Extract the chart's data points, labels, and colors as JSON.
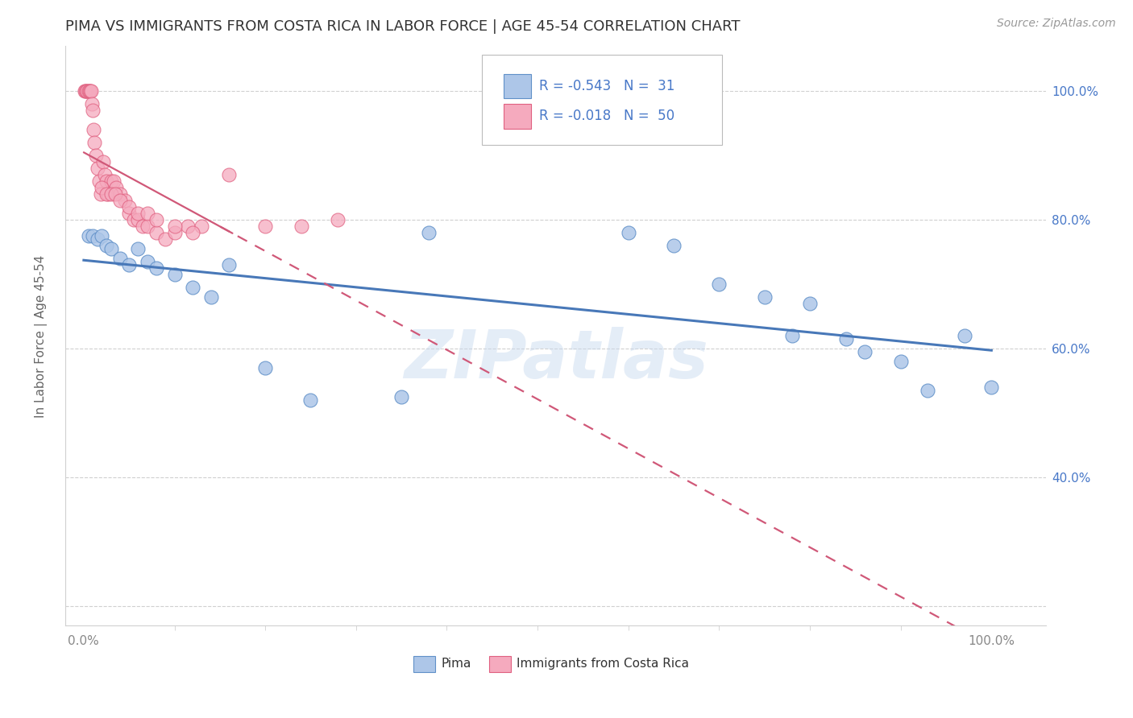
{
  "title": "PIMA VS IMMIGRANTS FROM COSTA RICA IN LABOR FORCE | AGE 45-54 CORRELATION CHART",
  "source": "Source: ZipAtlas.com",
  "ylabel": "In Labor Force | Age 45-54",
  "xlim": [
    -0.02,
    1.06
  ],
  "ylim": [
    0.17,
    1.07
  ],
  "blue_R": -0.543,
  "blue_N": 31,
  "pink_R": -0.018,
  "pink_N": 50,
  "blue_color": "#adc6e8",
  "pink_color": "#f5aabe",
  "blue_edge_color": "#6090c8",
  "pink_edge_color": "#e06080",
  "blue_line_color": "#4878b8",
  "pink_line_color": "#d05878",
  "legend_text_color": "#4878c8",
  "watermark": "ZIPatlas",
  "blue_x": [
    0.005,
    0.01,
    0.015,
    0.02,
    0.025,
    0.03,
    0.04,
    0.05,
    0.06,
    0.07,
    0.08,
    0.1,
    0.12,
    0.14,
    0.16,
    0.38,
    0.6,
    0.65,
    0.7,
    0.75,
    0.78,
    0.8,
    0.84,
    0.86,
    0.9,
    0.93,
    0.97,
    1.0,
    0.2,
    0.25,
    0.35
  ],
  "blue_y": [
    0.775,
    0.775,
    0.77,
    0.775,
    0.76,
    0.755,
    0.74,
    0.73,
    0.755,
    0.735,
    0.725,
    0.715,
    0.695,
    0.68,
    0.73,
    0.78,
    0.78,
    0.76,
    0.7,
    0.68,
    0.62,
    0.67,
    0.615,
    0.595,
    0.58,
    0.535,
    0.62,
    0.54,
    0.57,
    0.52,
    0.525
  ],
  "pink_x": [
    0.001,
    0.002,
    0.003,
    0.004,
    0.005,
    0.006,
    0.007,
    0.008,
    0.009,
    0.01,
    0.011,
    0.012,
    0.013,
    0.015,
    0.017,
    0.019,
    0.021,
    0.023,
    0.025,
    0.027,
    0.03,
    0.033,
    0.036,
    0.04,
    0.045,
    0.05,
    0.055,
    0.06,
    0.065,
    0.07,
    0.08,
    0.09,
    0.1,
    0.115,
    0.13,
    0.16,
    0.2,
    0.24,
    0.28,
    0.02,
    0.025,
    0.03,
    0.035,
    0.04,
    0.05,
    0.06,
    0.07,
    0.08,
    0.1,
    0.12
  ],
  "pink_y": [
    1.0,
    1.0,
    1.0,
    1.0,
    1.0,
    1.0,
    1.0,
    1.0,
    0.98,
    0.97,
    0.94,
    0.92,
    0.9,
    0.88,
    0.86,
    0.84,
    0.89,
    0.87,
    0.86,
    0.84,
    0.86,
    0.86,
    0.85,
    0.84,
    0.83,
    0.81,
    0.8,
    0.8,
    0.79,
    0.79,
    0.78,
    0.77,
    0.78,
    0.79,
    0.79,
    0.87,
    0.79,
    0.79,
    0.8,
    0.85,
    0.84,
    0.84,
    0.84,
    0.83,
    0.82,
    0.81,
    0.81,
    0.8,
    0.79,
    0.78
  ],
  "legend_label_blue": "Pima",
  "legend_label_pink": "Immigrants from Costa Rica",
  "background_color": "#ffffff",
  "grid_color": "#d0d0d0",
  "tick_color": "#888888"
}
